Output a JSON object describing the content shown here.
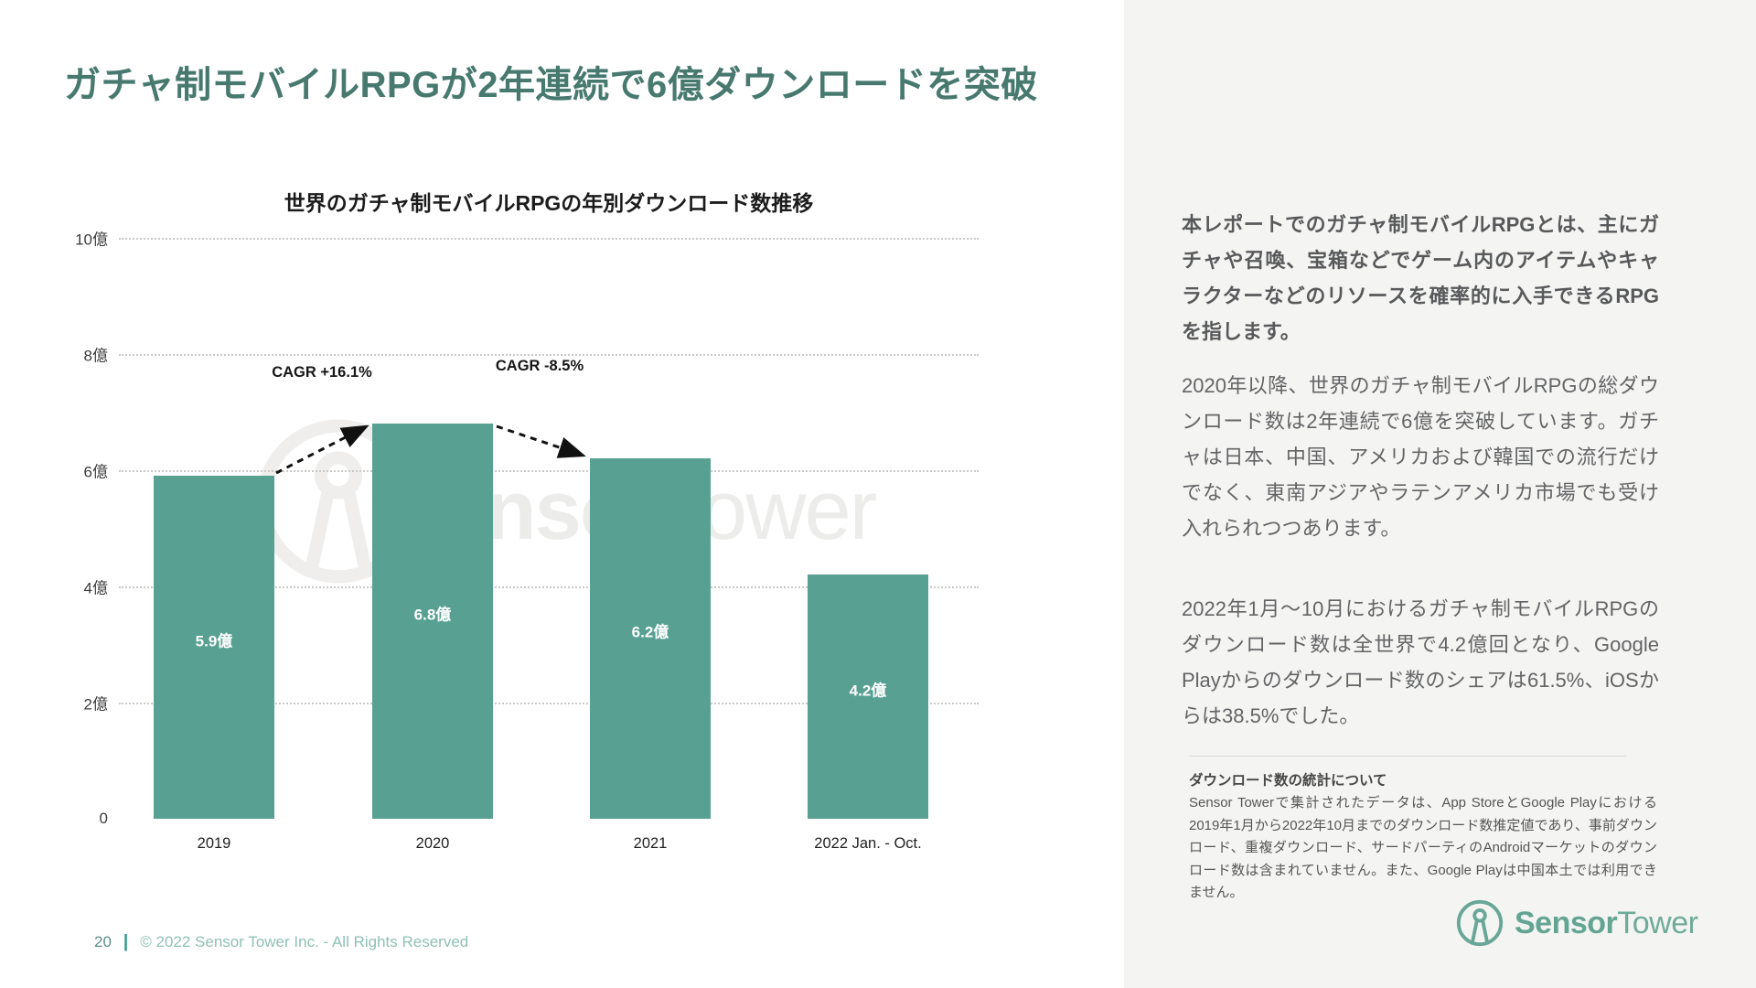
{
  "page": {
    "title": "ガチャ制モバイルRPGが2年連続で6億ダウンロードを突破",
    "footer": {
      "page_number": "20",
      "separator": "|",
      "copyright": "© 2022 Sensor Tower Inc. - All Rights Reserved"
    }
  },
  "chart_data": {
    "type": "bar",
    "title": "世界のガチャ制モバイルRPGの年別ダウンロード数推移",
    "categories": [
      "2019",
      "2020",
      "2021",
      "2022 Jan. - Oct."
    ],
    "values": [
      5.9,
      6.8,
      6.2,
      4.2
    ],
    "value_labels": [
      "5.9億",
      "6.8億",
      "6.2億",
      "4.2億"
    ],
    "unit": "億 (hundred million downloads)",
    "ylim": [
      0,
      10
    ],
    "y_ticks": [
      "10億",
      "8億",
      "6億",
      "4億",
      "2億",
      "0"
    ],
    "grid": "horizontal dotted",
    "legend": "none",
    "bar_color": "#57a092",
    "annotations": [
      {
        "label": "CAGR +16.1%",
        "from": "2019",
        "to": "2020",
        "arrow": "dashed up"
      },
      {
        "label": "CAGR -8.5%",
        "from": "2020",
        "to": "2021",
        "arrow": "dashed down"
      }
    ],
    "watermark": {
      "bold": "Sensor",
      "regular": "Tower"
    }
  },
  "sidebar": {
    "paragraphs": [
      "本レポートでのガチャ制モバイルRPGとは、主にガチャや召喚、宝箱などでゲーム内のアイテムやキャラクターなどのリソースを確率的に入手できるRPGを指します。",
      "2020年以降、世界のガチャ制モバイルRPGの総ダウンロード数は2年連続で6億を突破しています。ガチャは日本、中国、アメリカおよび韓国での流行だけでなく、東南アジアやラテンアメリカ市場でも受け入れられつつあります。",
      "2022年1月〜10月におけるガチャ制モバイルRPGのダウンロード数は全世界で4.2億回となり、Google Playからのダウンロード数のシェアは61.5%、iOSからは38.5%でした。"
    ],
    "note": {
      "heading": "ダウンロード数の統計について",
      "body": "Sensor Towerで集計されたデータは、App StoreとGoogle Playにおける2019年1月から2022年10月までのダウンロード数推定値であり、事前ダウンロード、重複ダウンロード、サードパーティのAndroidマーケットのダウンロード数は含まれていません。また、Google Playは中国本土では利用できません。"
    },
    "logo": {
      "brand_bold": "Sensor",
      "brand_regular": "Tower"
    }
  },
  "colors": {
    "title_teal": "#47796f",
    "bar": "#57a092",
    "panel_bg": "#f4f4f2",
    "logo_teal": "#68a797",
    "footer_text": "#8fc0b4"
  }
}
